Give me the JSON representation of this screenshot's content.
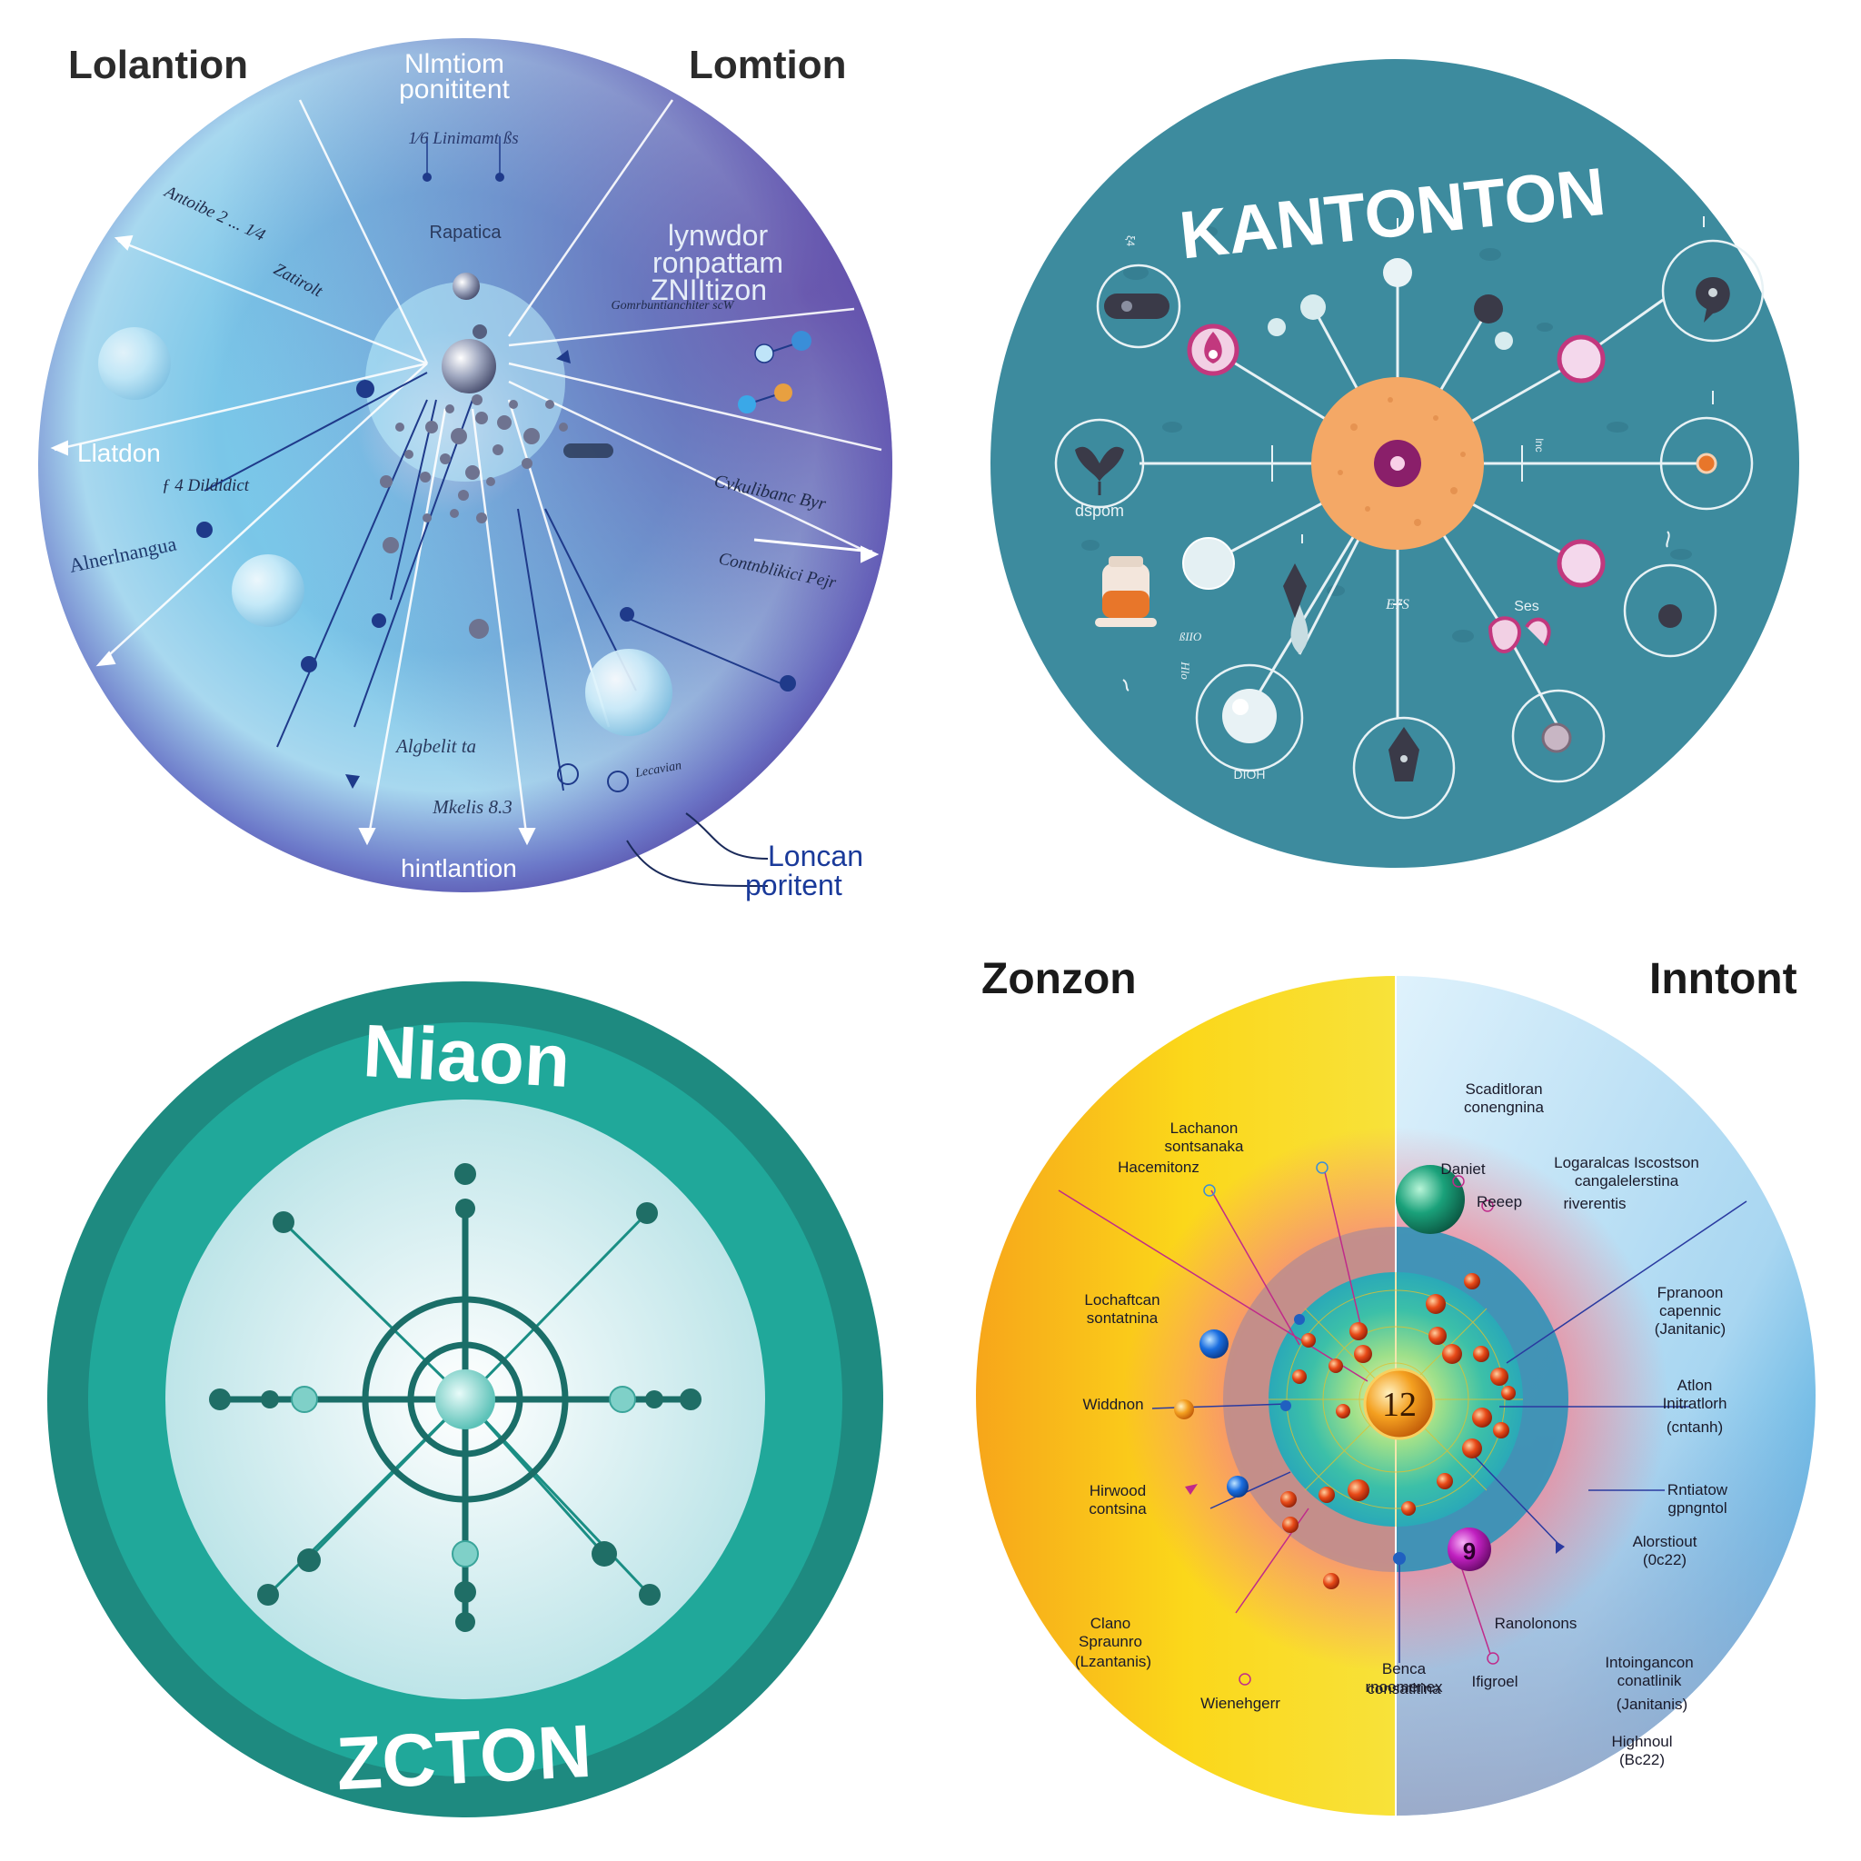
{
  "panels": {
    "top_left": {
      "colors": {
        "center": "#d4f2fb",
        "mid": "#5bbfe6",
        "edge": "#5a3fa0",
        "line": "#1f3a8a",
        "white_line": "#ffffff"
      },
      "corner_left": "Lolantion",
      "corner_right": "Lomtion",
      "top_title_1": "Nlmtiom",
      "top_title_2": "ponititent",
      "sub_1": "1⁄6  Linimamt ßs",
      "sub_2": "Rapatica",
      "right_block_1": "lynwdor",
      "right_block_2": "ronpattam",
      "right_block_3": "ZNIItizon",
      "right_small_1": "Gomrbuntianchiter scW",
      "left_upper_1": "Antoibe 2  ...  1⁄4",
      "left_upper_2": "Zatirolt",
      "left_mid": "Llatdon",
      "left_mid_2": "ƒ 4  Dildidict",
      "left_lower": "Alnerlnangua",
      "right_mid_1": "Cvkulibanc Byr",
      "right_mid_2": "Contnblikici Pejr",
      "bottom_1": "Algbelit ta",
      "bottom_2": "Mkelis 8.3",
      "bottom_3": "hintlantion",
      "bottom_right_small": "Lecavian",
      "callout_1": "Loncan",
      "callout_2": "poritent"
    },
    "top_right": {
      "colors": {
        "bg": "#3d8b9e",
        "core": "#f4a866",
        "core_dot": "#8a1f6a",
        "pink": "#c2387e",
        "dark": "#3a3a48",
        "orange": "#e8762a"
      },
      "title": "KANTONTON",
      "label_dspom": "dspom",
      "label_e7s": "E7S",
      "label_ses": "Ses",
      "label_dioh": "DIOH",
      "label_tick_left": "ξ4",
      "label_tick_right": "lnc",
      "label_rot_1": "ßIIO",
      "label_rot_2": "Hlo"
    },
    "bottom_left": {
      "colors": {
        "outer": "#1e8a80",
        "ring": "#20a89a",
        "inner": "#d4eef0",
        "line": "#1a6e68",
        "dot": "#1f6e66",
        "light_dot": "#7fd0c8"
      },
      "title": "Niaon",
      "bottom": "ZCTON"
    },
    "bottom_right": {
      "colors": {
        "yellow": "#fbd71a",
        "orange": "#f39c12",
        "blue": "#1e9cd8",
        "grayblue": "#9fb1cf",
        "green": "#1aa17a",
        "magenta": "#c020c0",
        "red": "#e04a1a"
      },
      "corner_left": "Zonzon",
      "corner_right": "Inntont",
      "center_number": "12",
      "small_number": "9",
      "labels_left": [
        {
          "l1": "Hacemitonz",
          "l2": ""
        },
        {
          "l1": "Lachanon",
          "l2": "sontsanaka"
        },
        {
          "l1": "Lochaftcan",
          "l2": "sontatnina"
        },
        {
          "l1": "Widdnon",
          "l2": ""
        },
        {
          "l1": "Hirwood",
          "l2": "contsina"
        },
        {
          "l1": "Clano",
          "l2": "Spraunro"
        },
        {
          "l1": "(Lzantanis)",
          "l2": ""
        },
        {
          "l1": "Wienehgerr",
          "l2": ""
        }
      ],
      "labels_top": [
        {
          "l1": "Scaditloran",
          "l2": "conengnina"
        },
        {
          "l1": "Daniet",
          "l2": ""
        },
        {
          "l1": "Reeep",
          "l2": ""
        },
        {
          "l1": "Logaralcas Iscostson",
          "l2": "cangalelerstina"
        },
        {
          "l1": "riverentis",
          "l2": ""
        }
      ],
      "labels_right": [
        {
          "l1": "Fpranoon",
          "l2": "capennic"
        },
        {
          "l1": "(Janitanic)",
          "l2": ""
        },
        {
          "l1": "Atlon",
          "l2": "Initratlorh"
        },
        {
          "l1": "(cntanh)",
          "l2": ""
        },
        {
          "l1": "Rntiatow",
          "l2": "gpngntol"
        },
        {
          "l1": "Alorstiout",
          "l2": "(0c22)"
        },
        {
          "l1": "Ranolonons",
          "l2": ""
        },
        {
          "l1": "Intoingancon",
          "l2": "conatlinik"
        },
        {
          "l1": "(Janitanis)",
          "l2": ""
        },
        {
          "l1": "Highnoul",
          "l2": "(Bc22)"
        }
      ],
      "labels_bottom": [
        {
          "l1": "Benca",
          "l2": "rnoomenex"
        },
        {
          "l1": "consatltina",
          "l2": ""
        },
        {
          "l1": "Ifigroel",
          "l2": ""
        }
      ]
    }
  }
}
